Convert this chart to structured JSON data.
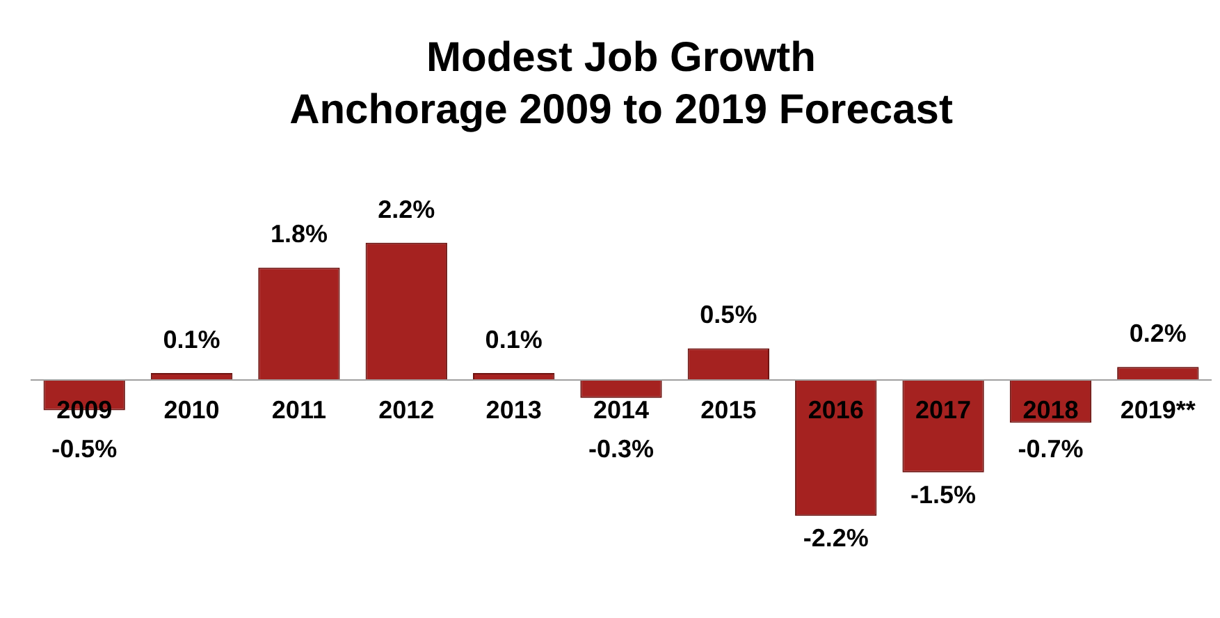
{
  "chart_data": {
    "type": "bar",
    "title": "Modest Job Growth\nAnchorage 2009 to 2019 Forecast",
    "categories": [
      "2009",
      "2010",
      "2011",
      "2012",
      "2013",
      "2014",
      "2015",
      "2016",
      "2017",
      "2018",
      "2019**"
    ],
    "values": [
      -0.5,
      0.1,
      1.8,
      2.2,
      0.1,
      -0.3,
      0.5,
      -2.2,
      -1.5,
      -0.7,
      0.2
    ],
    "value_labels": [
      "-0.5%",
      "0.1%",
      "1.8%",
      "2.2%",
      "0.1%",
      "-0.3%",
      "0.5%",
      "-2.2%",
      "-1.5%",
      "-0.7%",
      "0.2%"
    ],
    "color": "#a52220",
    "legend": false
  }
}
